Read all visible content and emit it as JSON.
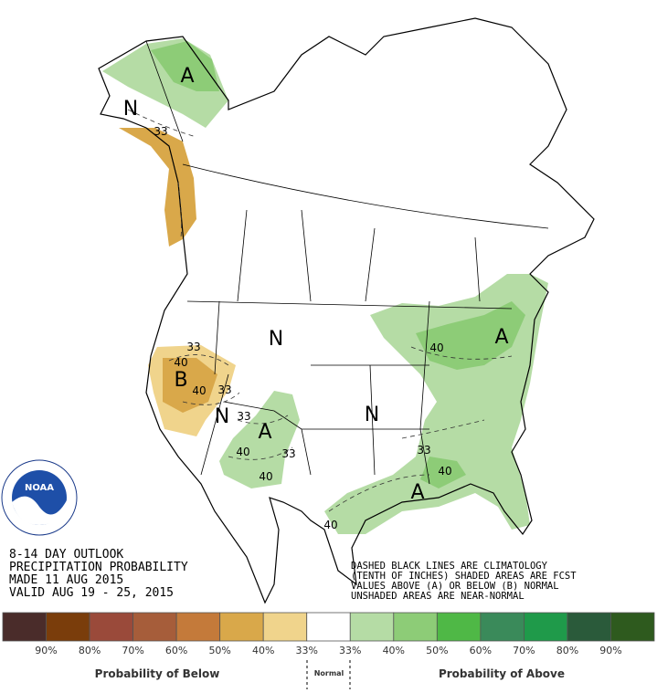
{
  "map": {
    "letters": [
      "A",
      "N",
      "B",
      "N",
      "N",
      "A",
      "N",
      "A",
      "A"
    ],
    "contours": [
      "33",
      "33",
      "40",
      "40",
      "33",
      "33",
      "40",
      "33",
      "40",
      "40",
      "33",
      "40",
      "40"
    ]
  },
  "logo": {
    "name": "NOAA"
  },
  "outlook": {
    "lines": [
      "8-14 DAY OUTLOOK",
      "PRECIPITATION PROBABILITY",
      "MADE  11 AUG 2015",
      "VALID  AUG 19 - 25, 2015"
    ]
  },
  "notes": [
    "DASHED BLACK LINES ARE CLIMATOLOGY",
    "(TENTH OF INCHES) SHADED AREAS ARE FCST",
    "VALUES ABOVE (A) OR BELOW (B) NORMAL",
    "UNSHADED AREAS ARE NEAR-NORMAL"
  ],
  "legend": {
    "swatches": [
      {
        "color": "#4a2c2a",
        "label": "90%"
      },
      {
        "color": "#7a3d0b",
        "label": "80%"
      },
      {
        "color": "#9a4a3a",
        "label": "70%"
      },
      {
        "color": "#a65d3a",
        "label": "60%"
      },
      {
        "color": "#c47a3a",
        "label": "50%"
      },
      {
        "color": "#d9a84a",
        "label": "40%"
      },
      {
        "color": "#f0d48c",
        "label": "33%"
      },
      {
        "color": "#ffffff",
        "label": "33%"
      },
      {
        "color": "#b5dca5",
        "label": "40%"
      },
      {
        "color": "#8dcc77",
        "label": "50%"
      },
      {
        "color": "#4fb846",
        "label": "60%"
      },
      {
        "color": "#3a8a5a",
        "label": "70%"
      },
      {
        "color": "#1f9a4a",
        "label": "80%"
      },
      {
        "color": "#2a5a3a",
        "label": "90%"
      },
      {
        "color": "#2e5a1e",
        "label": ""
      }
    ],
    "below": "Probability of Below",
    "normal": "Normal",
    "above": "Probability of Above"
  }
}
